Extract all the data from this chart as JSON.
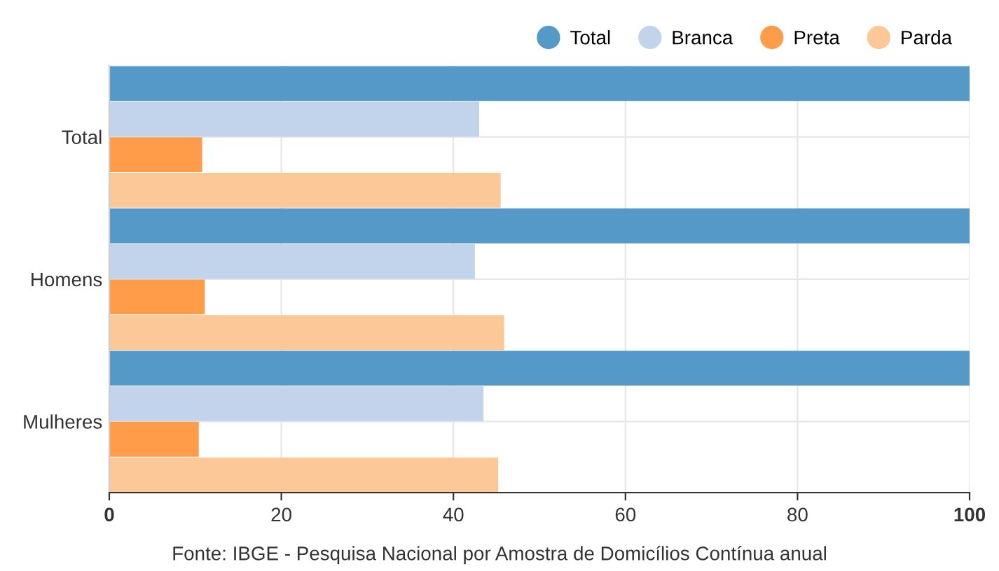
{
  "chart_data": {
    "type": "bar",
    "orientation": "horizontal",
    "categories": [
      "Total",
      "Homens",
      "Mulheres"
    ],
    "series": [
      {
        "name": "Total",
        "color": "#5599c8",
        "values": [
          100,
          100,
          100
        ]
      },
      {
        "name": "Branca",
        "color": "#c2d4ec",
        "values": [
          43.0,
          42.5,
          43.5
        ]
      },
      {
        "name": "Preta",
        "color": "#fe9c4a",
        "values": [
          10.8,
          11.1,
          10.4
        ]
      },
      {
        "name": "Parda",
        "color": "#fdc897",
        "values": [
          45.5,
          45.9,
          45.2
        ]
      }
    ],
    "xlim": [
      0,
      100
    ],
    "xticks": [
      0,
      20,
      40,
      60,
      80,
      100
    ],
    "grid": true,
    "legend": "top right",
    "annotations": [
      "Fonte: IBGE - Pesquisa Nacional por Amostra de Domicílios Contínua anual"
    ]
  }
}
